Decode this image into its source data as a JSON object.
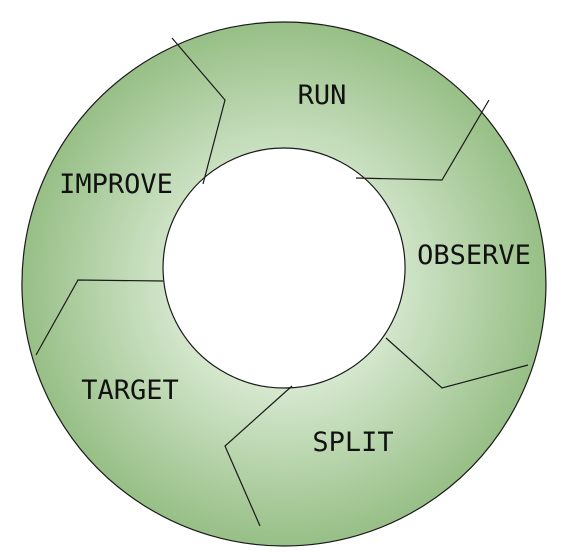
{
  "diagram": {
    "stages": [
      {
        "id": "run",
        "label": "RUN"
      },
      {
        "id": "observe",
        "label": "OBSERVE"
      },
      {
        "id": "split",
        "label": "SPLIT"
      },
      {
        "id": "target",
        "label": "TARGET"
      },
      {
        "id": "improve",
        "label": "IMPROVE"
      }
    ],
    "colors": {
      "ring_fill_center": "#d6e8cf",
      "ring_fill_edge": "#97bf86",
      "outline": "#1a1a1a"
    }
  }
}
